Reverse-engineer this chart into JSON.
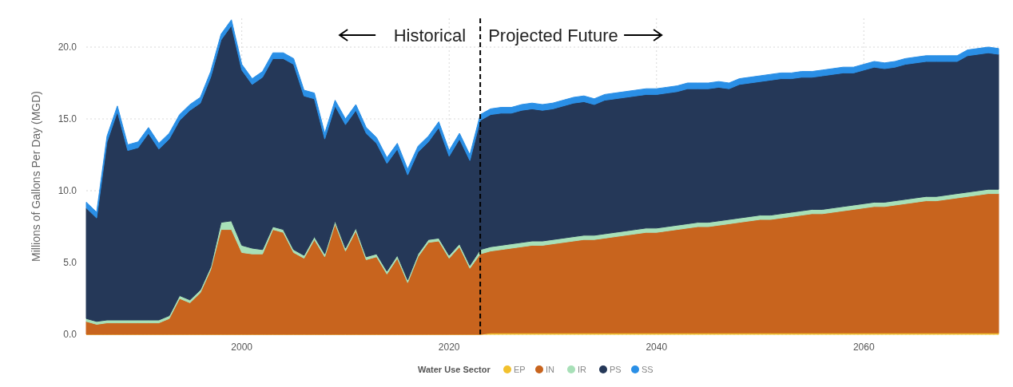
{
  "chart_data": {
    "type": "area",
    "stacked": true,
    "ylabel": "Millions of Gallons Per Day (MGD)",
    "legend_title": "Water Use Sector",
    "legend": "bottom",
    "grid": true,
    "x": [
      1985,
      1986,
      1987,
      1988,
      1989,
      1990,
      1991,
      1992,
      1993,
      1994,
      1995,
      1996,
      1997,
      1998,
      1999,
      2000,
      2001,
      2002,
      2003,
      2004,
      2005,
      2006,
      2007,
      2008,
      2009,
      2010,
      2011,
      2012,
      2013,
      2014,
      2015,
      2016,
      2017,
      2018,
      2019,
      2020,
      2021,
      2022,
      2023,
      2024,
      2025,
      2026,
      2027,
      2028,
      2029,
      2030,
      2031,
      2032,
      2033,
      2034,
      2035,
      2036,
      2037,
      2038,
      2039,
      2040,
      2041,
      2042,
      2043,
      2044,
      2045,
      2046,
      2047,
      2048,
      2049,
      2050,
      2051,
      2052,
      2053,
      2054,
      2055,
      2056,
      2057,
      2058,
      2059,
      2060,
      2061,
      2062,
      2063,
      2064,
      2065,
      2066,
      2067,
      2068,
      2069,
      2070,
      2071,
      2072,
      2073
    ],
    "xlim": [
      1985,
      2073
    ],
    "xticks": [
      2000,
      2020,
      2040,
      2060
    ],
    "ylim": [
      0,
      22
    ],
    "yticks": [
      {
        "value": 0,
        "label": "0.0"
      },
      {
        "value": 5,
        "label": "5.0"
      },
      {
        "value": 10,
        "label": "10.0"
      },
      {
        "value": 15,
        "label": "15.0"
      },
      {
        "value": 20,
        "label": "20.0"
      }
    ],
    "series": [
      {
        "name": "EP",
        "color": "#f2c12e",
        "values": [
          0,
          0,
          0,
          0,
          0,
          0,
          0,
          0,
          0,
          0,
          0,
          0,
          0,
          0,
          0,
          0,
          0,
          0,
          0,
          0,
          0,
          0,
          0,
          0,
          0,
          0,
          0,
          0,
          0,
          0,
          0,
          0,
          0,
          0,
          0,
          0,
          0,
          0,
          0,
          0.1,
          0.1,
          0.1,
          0.1,
          0.1,
          0.1,
          0.1,
          0.1,
          0.1,
          0.1,
          0.1,
          0.1,
          0.1,
          0.1,
          0.1,
          0.1,
          0.1,
          0.1,
          0.1,
          0.1,
          0.1,
          0.1,
          0.1,
          0.1,
          0.1,
          0.1,
          0.1,
          0.1,
          0.1,
          0.1,
          0.1,
          0.1,
          0.1,
          0.1,
          0.1,
          0.1,
          0.1,
          0.1,
          0.1,
          0.1,
          0.1,
          0.1,
          0.1,
          0.1,
          0.1,
          0.1,
          0.1,
          0.1,
          0.1,
          0.1
        ]
      },
      {
        "name": "IN",
        "color": "#c8641e",
        "values": [
          0.9,
          0.7,
          0.8,
          0.8,
          0.8,
          0.8,
          0.8,
          0.8,
          1.1,
          2.5,
          2.2,
          2.9,
          4.5,
          7.3,
          7.3,
          5.7,
          5.6,
          5.6,
          7.3,
          7.1,
          5.7,
          5.3,
          6.6,
          5.4,
          7.7,
          5.8,
          7.2,
          5.2,
          5.4,
          4.2,
          5.3,
          3.6,
          5.4,
          6.4,
          6.5,
          5.3,
          6.1,
          4.6,
          5.6,
          5.7,
          5.8,
          5.9,
          6.0,
          6.1,
          6.1,
          6.2,
          6.3,
          6.4,
          6.5,
          6.5,
          6.6,
          6.7,
          6.8,
          6.9,
          7.0,
          7.0,
          7.1,
          7.2,
          7.3,
          7.4,
          7.4,
          7.5,
          7.6,
          7.7,
          7.8,
          7.9,
          7.9,
          8.0,
          8.1,
          8.2,
          8.3,
          8.3,
          8.4,
          8.5,
          8.6,
          8.7,
          8.8,
          8.8,
          8.9,
          9.0,
          9.1,
          9.2,
          9.2,
          9.3,
          9.4,
          9.5,
          9.6,
          9.7,
          9.7
        ]
      },
      {
        "name": "IR",
        "color": "#a8e0b8",
        "values": [
          0.2,
          0.2,
          0.2,
          0.2,
          0.2,
          0.2,
          0.2,
          0.2,
          0.2,
          0.2,
          0.2,
          0.2,
          0.2,
          0.5,
          0.6,
          0.5,
          0.4,
          0.3,
          0.2,
          0.2,
          0.2,
          0.2,
          0.2,
          0.2,
          0.2,
          0.2,
          0.2,
          0.2,
          0.2,
          0.2,
          0.2,
          0.2,
          0.2,
          0.2,
          0.2,
          0.2,
          0.2,
          0.2,
          0.3,
          0.3,
          0.3,
          0.3,
          0.3,
          0.3,
          0.3,
          0.3,
          0.3,
          0.3,
          0.3,
          0.3,
          0.3,
          0.3,
          0.3,
          0.3,
          0.3,
          0.3,
          0.3,
          0.3,
          0.3,
          0.3,
          0.3,
          0.3,
          0.3,
          0.3,
          0.3,
          0.3,
          0.3,
          0.3,
          0.3,
          0.3,
          0.3,
          0.3,
          0.3,
          0.3,
          0.3,
          0.3,
          0.3,
          0.3,
          0.3,
          0.3,
          0.3,
          0.3,
          0.3,
          0.3,
          0.3,
          0.3,
          0.3,
          0.3,
          0.3
        ]
      },
      {
        "name": "PS",
        "color": "#253858",
        "values": [
          7.7,
          7.2,
          12.4,
          14.5,
          11.8,
          12.0,
          13.0,
          11.9,
          12.3,
          12.2,
          13.2,
          13.0,
          13.2,
          12.7,
          13.6,
          12.2,
          11.4,
          12.0,
          11.7,
          11.9,
          12.9,
          11.1,
          9.6,
          8.0,
          8.0,
          8.6,
          8.2,
          8.6,
          7.7,
          7.5,
          7.4,
          7.3,
          7.1,
          6.8,
          7.7,
          6.9,
          7.3,
          7.3,
          9.0,
          9.2,
          9.2,
          9.1,
          9.2,
          9.2,
          9.1,
          9.1,
          9.2,
          9.3,
          9.3,
          9.1,
          9.3,
          9.3,
          9.3,
          9.3,
          9.3,
          9.3,
          9.3,
          9.3,
          9.4,
          9.3,
          9.3,
          9.3,
          9.1,
          9.3,
          9.3,
          9.3,
          9.4,
          9.4,
          9.3,
          9.3,
          9.2,
          9.3,
          9.3,
          9.3,
          9.2,
          9.3,
          9.4,
          9.3,
          9.3,
          9.4,
          9.4,
          9.4,
          9.4,
          9.3,
          9.2,
          9.5,
          9.5,
          9.5,
          9.4
        ]
      },
      {
        "name": "SS",
        "color": "#2a8fe6",
        "values": [
          0.4,
          0.4,
          0.4,
          0.4,
          0.4,
          0.4,
          0.4,
          0.4,
          0.4,
          0.4,
          0.4,
          0.4,
          0.4,
          0.4,
          0.4,
          0.4,
          0.4,
          0.4,
          0.4,
          0.4,
          0.4,
          0.4,
          0.4,
          0.4,
          0.4,
          0.4,
          0.4,
          0.4,
          0.4,
          0.4,
          0.4,
          0.4,
          0.4,
          0.4,
          0.4,
          0.4,
          0.4,
          0.4,
          0.4,
          0.4,
          0.4,
          0.4,
          0.4,
          0.4,
          0.4,
          0.4,
          0.4,
          0.4,
          0.4,
          0.4,
          0.4,
          0.4,
          0.4,
          0.4,
          0.4,
          0.4,
          0.4,
          0.4,
          0.4,
          0.4,
          0.4,
          0.4,
          0.4,
          0.4,
          0.4,
          0.4,
          0.4,
          0.4,
          0.4,
          0.4,
          0.4,
          0.4,
          0.4,
          0.4,
          0.4,
          0.4,
          0.4,
          0.4,
          0.4,
          0.4,
          0.4,
          0.4,
          0.4,
          0.4,
          0.4,
          0.4,
          0.4,
          0.4,
          0.4
        ]
      }
    ],
    "ref_lines": [
      {
        "axis": "x",
        "value": 2023,
        "color": "#000000",
        "line_style": "dashed"
      }
    ],
    "annotations": [
      "Historical",
      "Projected Future"
    ]
  }
}
